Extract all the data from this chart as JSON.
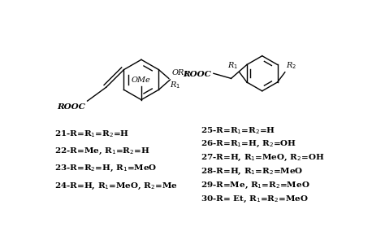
{
  "background_color": "#ffffff",
  "figsize": [
    4.74,
    2.9
  ],
  "dpi": 100,
  "left_compounds": [
    "21-R=R$_1$=R$_2$=H",
    "22-R=Me, R$_1$=R$_2$=H",
    "23-R=R$_2$=H, R$_1$=MeO",
    "24-R=H, R$_1$=MeO, R$_2$=Me"
  ],
  "right_compounds": [
    "25-R=R$_1$=R$_2$=H",
    "26-R=R$_1$=H, R$_2$=OH",
    "27-R=H, R$_1$=MeO, R$_2$=OH",
    "28-R=H, R$_1$=R$_2$=MeO",
    "29-R=Me, R$_1$=R$_2$=MeO",
    "30-R= Et, R$_1$=R$_2$=MeO"
  ]
}
